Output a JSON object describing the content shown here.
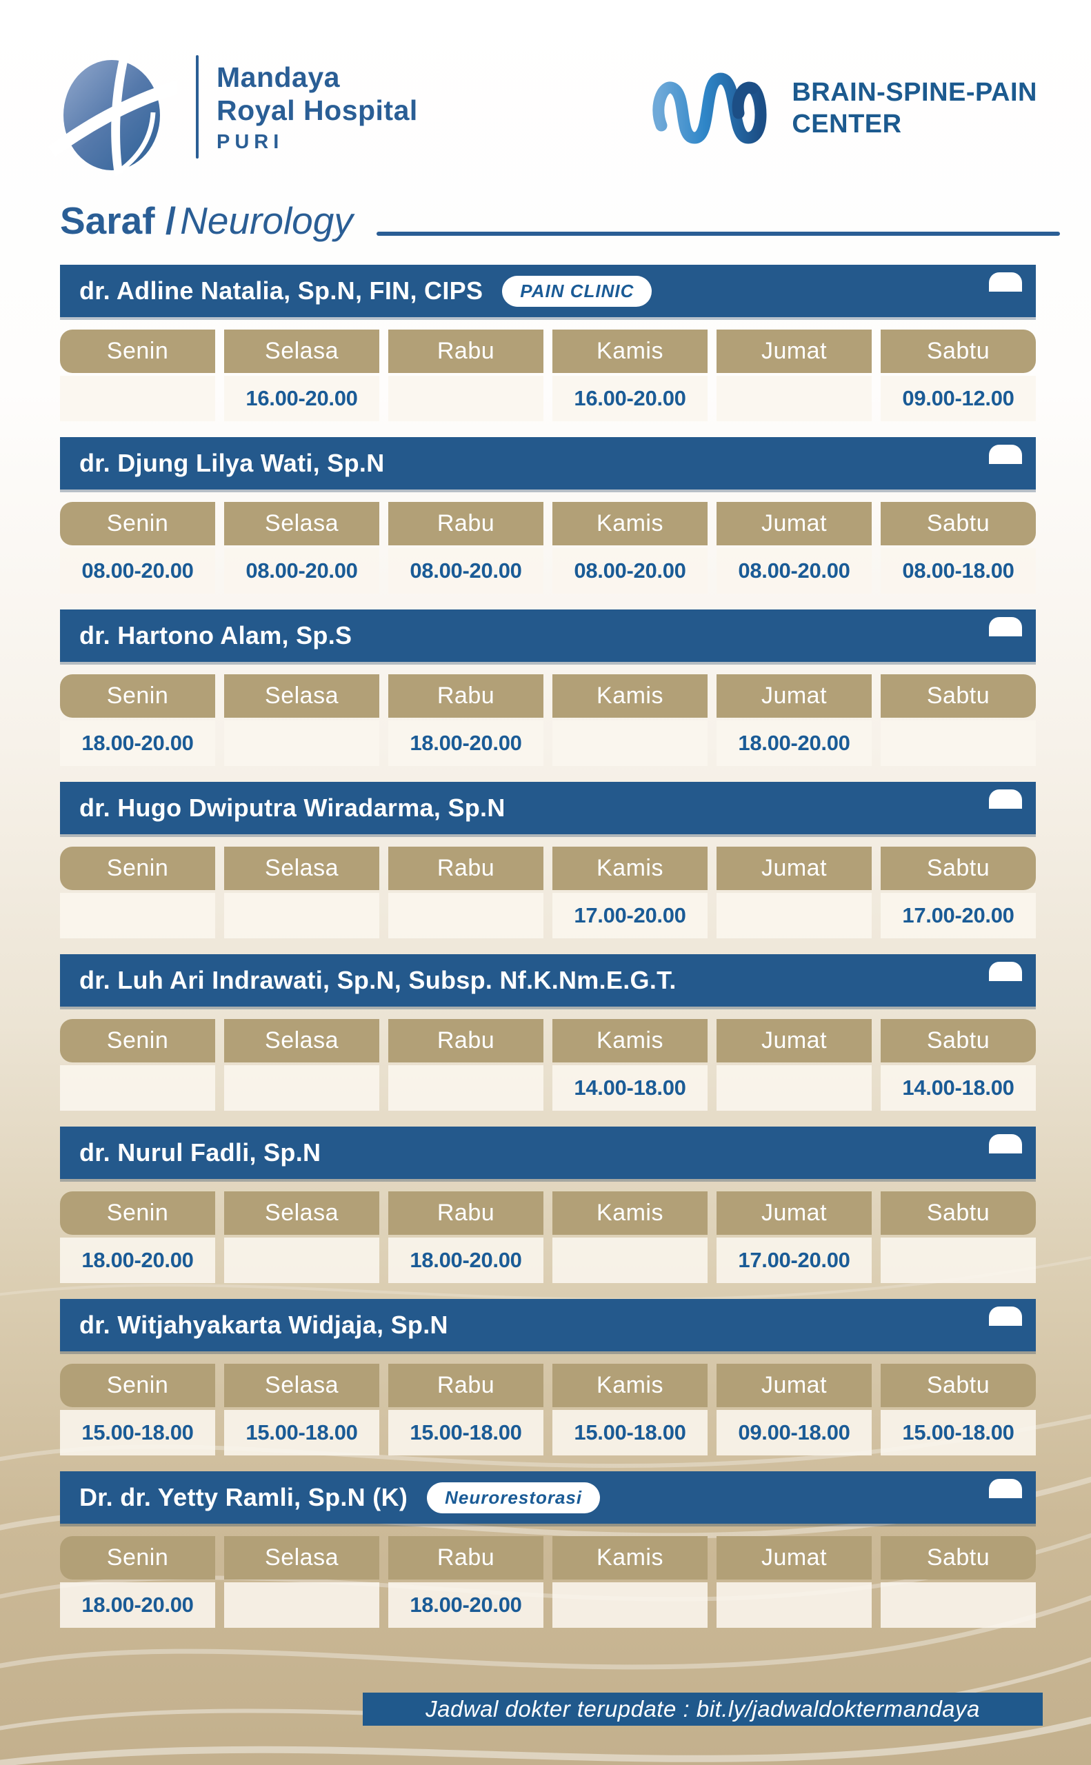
{
  "header": {
    "hospital": {
      "line1": "Mandaya",
      "line2": "Royal Hospital",
      "line3": "PURI"
    },
    "center": {
      "line1": "BRAIN-SPINE-PAIN",
      "line2": "CENTER"
    }
  },
  "title": {
    "id": "Saraf /",
    "en": "Neurology"
  },
  "days": [
    "Senin",
    "Selasa",
    "Rabu",
    "Kamis",
    "Jumat",
    "Sabtu"
  ],
  "doctors": [
    {
      "name": "dr. Adline Natalia, Sp.N, FIN, CIPS",
      "badge": "PAIN CLINIC",
      "times": [
        "",
        "16.00-20.00",
        "",
        "16.00-20.00",
        "",
        "09.00-12.00"
      ]
    },
    {
      "name": "dr. Djung Lilya Wati, Sp.N",
      "badge": "",
      "times": [
        "08.00-20.00",
        "08.00-20.00",
        "08.00-20.00",
        "08.00-20.00",
        "08.00-20.00",
        "08.00-18.00"
      ]
    },
    {
      "name": "dr. Hartono Alam, Sp.S",
      "badge": "",
      "times": [
        "18.00-20.00",
        "",
        "18.00-20.00",
        "",
        "18.00-20.00",
        ""
      ]
    },
    {
      "name": "dr. Hugo Dwiputra Wiradarma, Sp.N",
      "badge": "",
      "times": [
        "",
        "",
        "",
        "17.00-20.00",
        "",
        "17.00-20.00"
      ]
    },
    {
      "name": "dr. Luh Ari Indrawati, Sp.N, Subsp. Nf.K.Nm.E.G.T.",
      "badge": "",
      "times": [
        "",
        "",
        "",
        "14.00-18.00",
        "",
        "14.00-18.00"
      ]
    },
    {
      "name": "dr. Nurul Fadli, Sp.N",
      "badge": "",
      "times": [
        "18.00-20.00",
        "",
        "18.00-20.00",
        "",
        "17.00-20.00",
        ""
      ]
    },
    {
      "name": "dr. Witjahyakarta Widjaja, Sp.N",
      "badge": "",
      "times": [
        "15.00-18.00",
        "15.00-18.00",
        "15.00-18.00",
        "15.00-18.00",
        "09.00-18.00",
        "15.00-18.00"
      ]
    },
    {
      "name": "Dr. dr. Yetty Ramli, Sp.N (K)",
      "badge": "Neurorestorasi",
      "times": [
        "18.00-20.00",
        "",
        "18.00-20.00",
        "",
        "",
        ""
      ]
    }
  ],
  "footer": {
    "text": "Jadwal dokter terupdate : bit.ly/jadwaldoktermandaya"
  },
  "colors": {
    "primary_blue": "#24598C",
    "gold": "#B2A077",
    "ivory_cell": "#FAF6EE",
    "time_text_blue": "#1A5B96",
    "background_tan": "#C3B08D"
  }
}
